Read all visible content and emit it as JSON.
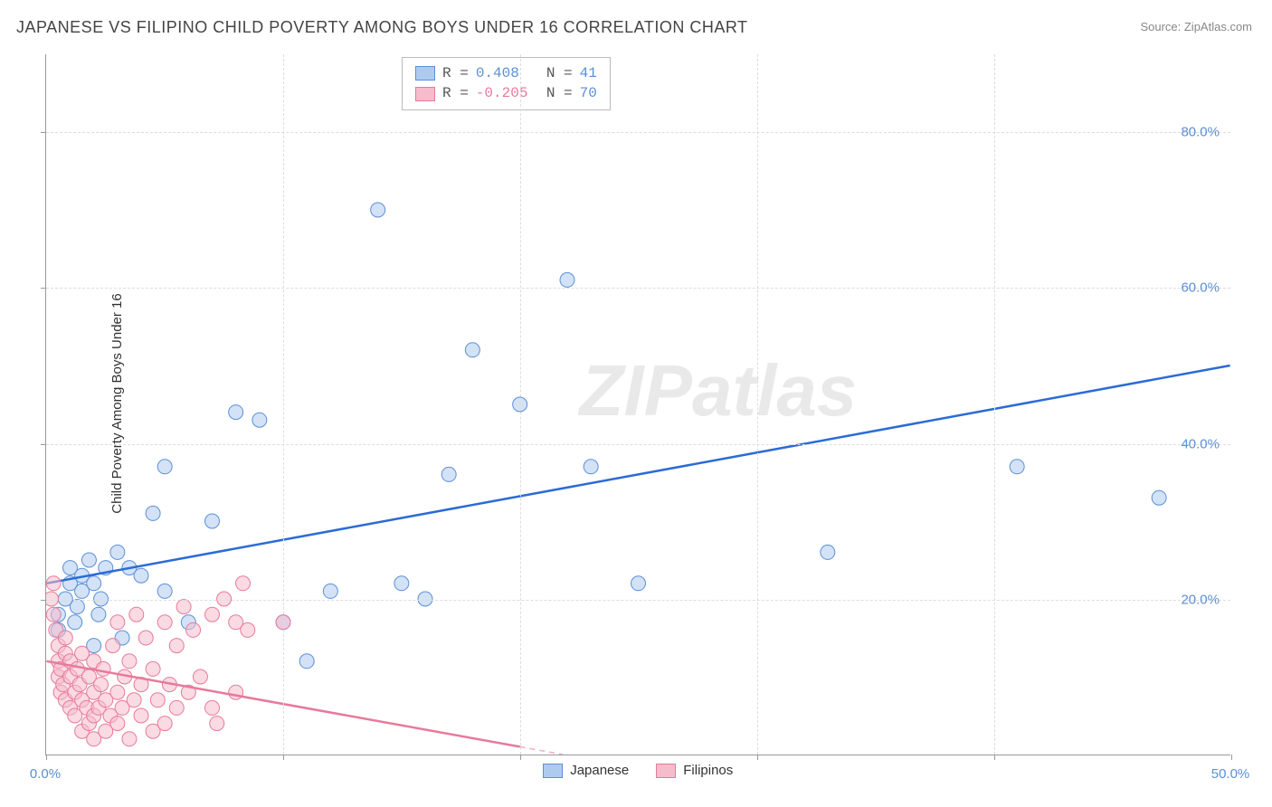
{
  "title": "JAPANESE VS FILIPINO CHILD POVERTY AMONG BOYS UNDER 16 CORRELATION CHART",
  "source": "Source: ZipAtlas.com",
  "watermark": "ZIPatlas",
  "ylabel": "Child Poverty Among Boys Under 16",
  "chart": {
    "type": "scatter",
    "background_color": "#ffffff",
    "grid_color": "#dddddd",
    "axis_color": "#999999",
    "xlim": [
      0,
      50
    ],
    "ylim": [
      0,
      90
    ],
    "xticks": [
      0,
      10,
      20,
      30,
      40,
      50
    ],
    "xtick_labels": [
      "0.0%",
      "",
      "",
      "",
      "",
      "50.0%"
    ],
    "yticks": [
      20,
      40,
      60,
      80
    ],
    "ytick_labels": [
      "20.0%",
      "40.0%",
      "60.0%",
      "80.0%"
    ],
    "ytick_color": "#5b8fd6",
    "xtick_color": "#5b8fd6",
    "vgrid_positions": [
      10,
      20,
      30,
      40
    ],
    "marker_radius": 8,
    "marker_opacity": 0.55,
    "series": [
      {
        "name": "Japanese",
        "color_fill": "#aecbef",
        "color_stroke": "#5b8fd6",
        "trend_color": "#2b6bd6",
        "trend_width": 2.5,
        "trend": {
          "x1": 0,
          "y1": 22,
          "x2": 50,
          "y2": 50
        },
        "R": "0.408",
        "N": "41",
        "points": [
          [
            0.5,
            18
          ],
          [
            0.5,
            16
          ],
          [
            0.8,
            20
          ],
          [
            1,
            22
          ],
          [
            1,
            24
          ],
          [
            1.2,
            17
          ],
          [
            1.3,
            19
          ],
          [
            1.5,
            21
          ],
          [
            1.5,
            23
          ],
          [
            1.8,
            25
          ],
          [
            2,
            22
          ],
          [
            2,
            14
          ],
          [
            2.2,
            18
          ],
          [
            2.3,
            20
          ],
          [
            2.5,
            24
          ],
          [
            3,
            26
          ],
          [
            3.2,
            15
          ],
          [
            3.5,
            24
          ],
          [
            4,
            23
          ],
          [
            4.5,
            31
          ],
          [
            5,
            21
          ],
          [
            5,
            37
          ],
          [
            6,
            17
          ],
          [
            7,
            30
          ],
          [
            8,
            44
          ],
          [
            9,
            43
          ],
          [
            10,
            17
          ],
          [
            11,
            12
          ],
          [
            12,
            21
          ],
          [
            14,
            70
          ],
          [
            15,
            22
          ],
          [
            16,
            20
          ],
          [
            17,
            36
          ],
          [
            18,
            52
          ],
          [
            20,
            45
          ],
          [
            22,
            61
          ],
          [
            23,
            37
          ],
          [
            25,
            22
          ],
          [
            33,
            26
          ],
          [
            41,
            37
          ],
          [
            47,
            33
          ]
        ]
      },
      {
        "name": "Filipinos",
        "color_fill": "#f5bccc",
        "color_stroke": "#e77a9c",
        "trend_color": "#e77a9c",
        "trend_width": 2.5,
        "trend": {
          "x1": 0,
          "y1": 12,
          "x2": 20,
          "y2": 1
        },
        "trend_extrapolate_dashed": true,
        "R": "-0.205",
        "N": "70",
        "points": [
          [
            0.2,
            20
          ],
          [
            0.3,
            18
          ],
          [
            0.3,
            22
          ],
          [
            0.4,
            16
          ],
          [
            0.5,
            14
          ],
          [
            0.5,
            12
          ],
          [
            0.5,
            10
          ],
          [
            0.6,
            8
          ],
          [
            0.6,
            11
          ],
          [
            0.7,
            9
          ],
          [
            0.8,
            7
          ],
          [
            0.8,
            13
          ],
          [
            0.8,
            15
          ],
          [
            1,
            6
          ],
          [
            1,
            10
          ],
          [
            1,
            12
          ],
          [
            1.2,
            5
          ],
          [
            1.2,
            8
          ],
          [
            1.3,
            11
          ],
          [
            1.4,
            9
          ],
          [
            1.5,
            3
          ],
          [
            1.5,
            7
          ],
          [
            1.5,
            13
          ],
          [
            1.7,
            6
          ],
          [
            1.8,
            4
          ],
          [
            1.8,
            10
          ],
          [
            2,
            2
          ],
          [
            2,
            5
          ],
          [
            2,
            8
          ],
          [
            2,
            12
          ],
          [
            2.2,
            6
          ],
          [
            2.3,
            9
          ],
          [
            2.4,
            11
          ],
          [
            2.5,
            3
          ],
          [
            2.5,
            7
          ],
          [
            2.7,
            5
          ],
          [
            2.8,
            14
          ],
          [
            3,
            4
          ],
          [
            3,
            8
          ],
          [
            3,
            17
          ],
          [
            3.2,
            6
          ],
          [
            3.3,
            10
          ],
          [
            3.5,
            2
          ],
          [
            3.5,
            12
          ],
          [
            3.7,
            7
          ],
          [
            3.8,
            18
          ],
          [
            4,
            5
          ],
          [
            4,
            9
          ],
          [
            4.2,
            15
          ],
          [
            4.5,
            3
          ],
          [
            4.5,
            11
          ],
          [
            4.7,
            7
          ],
          [
            5,
            4
          ],
          [
            5,
            17
          ],
          [
            5.2,
            9
          ],
          [
            5.5,
            6
          ],
          [
            5.5,
            14
          ],
          [
            5.8,
            19
          ],
          [
            6,
            8
          ],
          [
            6.2,
            16
          ],
          [
            6.5,
            10
          ],
          [
            7,
            18
          ],
          [
            7,
            6
          ],
          [
            7.5,
            20
          ],
          [
            8,
            8
          ],
          [
            8,
            17
          ],
          [
            8.3,
            22
          ],
          [
            8.5,
            16
          ],
          [
            10,
            17
          ],
          [
            7.2,
            4
          ]
        ]
      }
    ]
  },
  "stats_box": {
    "rows": [
      {
        "swatch_fill": "#aecbef",
        "swatch_stroke": "#5b8fd6",
        "r_label": "R =",
        "r_val": "0.408",
        "r_val_color": "#5b8fd6",
        "n_label": "N =",
        "n_val": "41",
        "n_val_color": "#5b8fd6"
      },
      {
        "swatch_fill": "#f5bccc",
        "swatch_stroke": "#e77a9c",
        "r_label": "R =",
        "r_val": "-0.205",
        "r_val_color": "#e77a9c",
        "n_label": "N =",
        "n_val": "70",
        "n_val_color": "#5b8fd6"
      }
    ]
  },
  "bottom_legend": [
    {
      "swatch_fill": "#aecbef",
      "swatch_stroke": "#5b8fd6",
      "label": "Japanese"
    },
    {
      "swatch_fill": "#f5bccc",
      "swatch_stroke": "#e77a9c",
      "label": "Filipinos"
    }
  ]
}
